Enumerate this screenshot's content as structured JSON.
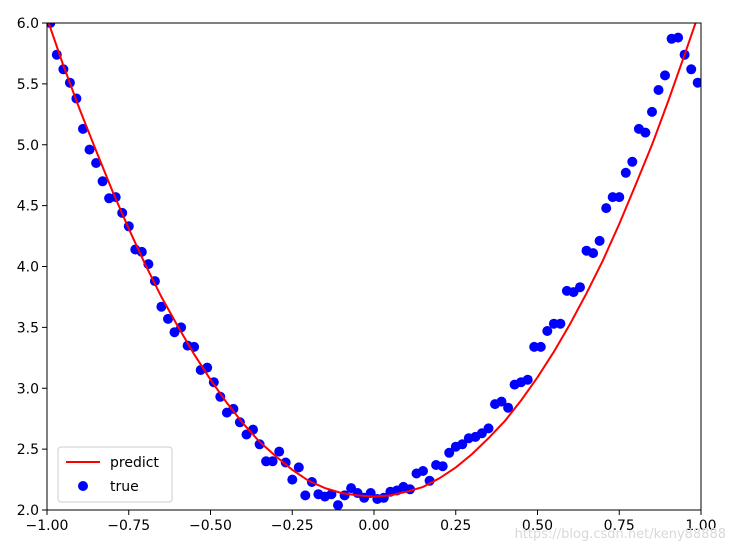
{
  "chart_data": {
    "type": "scatter",
    "xlim": [
      -1.0,
      1.0
    ],
    "ylim": [
      2.0,
      6.0
    ],
    "xticks": [
      "−1.00",
      "−0.75",
      "−0.50",
      "−0.25",
      "0.00",
      "0.25",
      "0.50",
      "0.75",
      "1.00"
    ],
    "xtick_values": [
      -1.0,
      -0.75,
      -0.5,
      -0.25,
      0.0,
      0.25,
      0.5,
      0.75,
      1.0
    ],
    "yticks": [
      "2.0",
      "2.5",
      "3.0",
      "3.5",
      "4.0",
      "4.5",
      "5.0",
      "5.5",
      "6.0"
    ],
    "ytick_values": [
      2.0,
      2.5,
      3.0,
      3.5,
      4.0,
      4.5,
      5.0,
      5.5,
      6.0
    ],
    "grid": false,
    "legend_position": "lower-left",
    "series": [
      {
        "name": "predict",
        "kind": "line",
        "color": "#ff0000",
        "x": [
          -1.0,
          -0.95,
          -0.9,
          -0.85,
          -0.8,
          -0.75,
          -0.7,
          -0.65,
          -0.6,
          -0.55,
          -0.5,
          -0.45,
          -0.4,
          -0.35,
          -0.3,
          -0.25,
          -0.2,
          -0.15,
          -0.1,
          -0.05,
          0.0,
          0.05,
          0.1,
          0.15,
          0.2,
          0.25,
          0.3,
          0.35,
          0.4,
          0.45,
          0.5,
          0.55,
          0.6,
          0.65,
          0.7,
          0.75,
          0.8,
          0.85,
          0.9,
          0.95,
          1.0
        ],
        "y": [
          6.04,
          5.65,
          5.29,
          4.95,
          4.62,
          4.31,
          4.02,
          3.75,
          3.51,
          3.28,
          3.07,
          2.88,
          2.71,
          2.56,
          2.44,
          2.33,
          2.24,
          2.18,
          2.14,
          2.12,
          2.11,
          2.12,
          2.15,
          2.19,
          2.26,
          2.35,
          2.46,
          2.59,
          2.73,
          2.9,
          3.09,
          3.3,
          3.53,
          3.78,
          4.05,
          4.35,
          4.67,
          5.0,
          5.36,
          5.74,
          6.13
        ]
      },
      {
        "name": "true",
        "kind": "scatter",
        "color": "#0000ff",
        "x": [
          -0.99,
          -0.97,
          -0.95,
          -0.93,
          -0.91,
          -0.89,
          -0.87,
          -0.85,
          -0.83,
          -0.81,
          -0.79,
          -0.77,
          -0.75,
          -0.73,
          -0.71,
          -0.69,
          -0.67,
          -0.65,
          -0.63,
          -0.61,
          -0.59,
          -0.57,
          -0.55,
          -0.53,
          -0.51,
          -0.49,
          -0.47,
          -0.45,
          -0.43,
          -0.41,
          -0.39,
          -0.37,
          -0.35,
          -0.33,
          -0.31,
          -0.29,
          -0.27,
          -0.25,
          -0.23,
          -0.21,
          -0.19,
          -0.17,
          -0.15,
          -0.13,
          -0.11,
          -0.09,
          -0.07,
          -0.05,
          -0.03,
          -0.01,
          0.01,
          0.03,
          0.05,
          0.07,
          0.09,
          0.11,
          0.13,
          0.15,
          0.17,
          0.19,
          0.21,
          0.23,
          0.25,
          0.27,
          0.29,
          0.31,
          0.33,
          0.35,
          0.37,
          0.39,
          0.41,
          0.43,
          0.45,
          0.47,
          0.49,
          0.51,
          0.53,
          0.55,
          0.57,
          0.59,
          0.61,
          0.63,
          0.65,
          0.67,
          0.69,
          0.71,
          0.73,
          0.75,
          0.77,
          0.79,
          0.81,
          0.83,
          0.85,
          0.87,
          0.89,
          0.91,
          0.93,
          0.95,
          0.97,
          0.99
        ],
        "y": [
          6.0,
          5.74,
          5.62,
          5.51,
          5.38,
          5.13,
          4.96,
          4.85,
          4.7,
          4.56,
          4.57,
          4.44,
          4.33,
          4.14,
          4.12,
          4.02,
          3.88,
          3.67,
          3.57,
          3.46,
          3.5,
          3.35,
          3.34,
          3.15,
          3.17,
          3.05,
          2.93,
          2.8,
          2.83,
          2.72,
          2.62,
          2.66,
          2.54,
          2.4,
          2.4,
          2.48,
          2.39,
          2.25,
          2.35,
          2.12,
          2.23,
          2.13,
          2.11,
          2.13,
          2.04,
          2.12,
          2.18,
          2.14,
          2.1,
          2.14,
          2.09,
          2.1,
          2.15,
          2.16,
          2.19,
          2.17,
          2.3,
          2.32,
          2.24,
          2.37,
          2.36,
          2.47,
          2.52,
          2.54,
          2.59,
          2.6,
          2.63,
          2.67,
          2.87,
          2.89,
          2.84,
          3.03,
          3.05,
          3.07,
          3.34,
          3.34,
          3.47,
          3.53,
          3.53,
          3.8,
          3.79,
          3.83,
          4.13,
          4.11,
          4.21,
          4.48,
          4.57,
          4.57,
          4.77,
          4.86,
          5.13,
          5.1,
          5.27,
          5.45,
          5.57,
          5.87,
          5.88,
          5.74,
          5.62,
          5.51
        ]
      }
    ]
  },
  "watermark": "https://blog.csdn.net/keny88888"
}
